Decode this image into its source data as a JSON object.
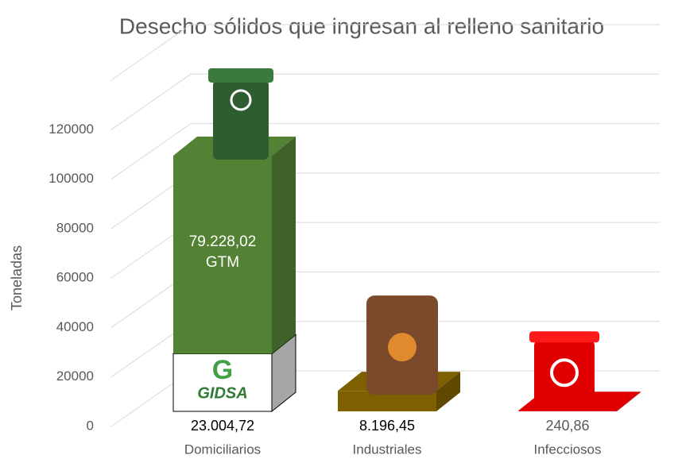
{
  "chart_data": {
    "type": "bar3d",
    "title": "Desecho sólidos que ingresan al relleno sanitario",
    "y_label": "Toneladas",
    "categories": [
      "Domiciliarios",
      "Industriales",
      "Infecciosos"
    ],
    "series": [
      {
        "colors": [
          "#ffffff",
          "#7f6000",
          "#e00000"
        ],
        "values": [
          23004.72,
          8196.45,
          240.86
        ],
        "value_labels": [
          "23.004,72",
          "8.196,45",
          "240,86"
        ]
      },
      {
        "color": "#548235",
        "values": [
          79228.02,
          null,
          null
        ],
        "value_labels": [
          "79.228,02\nGTM",
          null,
          null
        ]
      }
    ],
    "annotations": [
      "GIDSA"
    ],
    "ylim": [
      0,
      140000
    ],
    "yticks": [
      0,
      20000,
      40000,
      60000,
      80000,
      100000,
      120000
    ],
    "grid": true
  }
}
